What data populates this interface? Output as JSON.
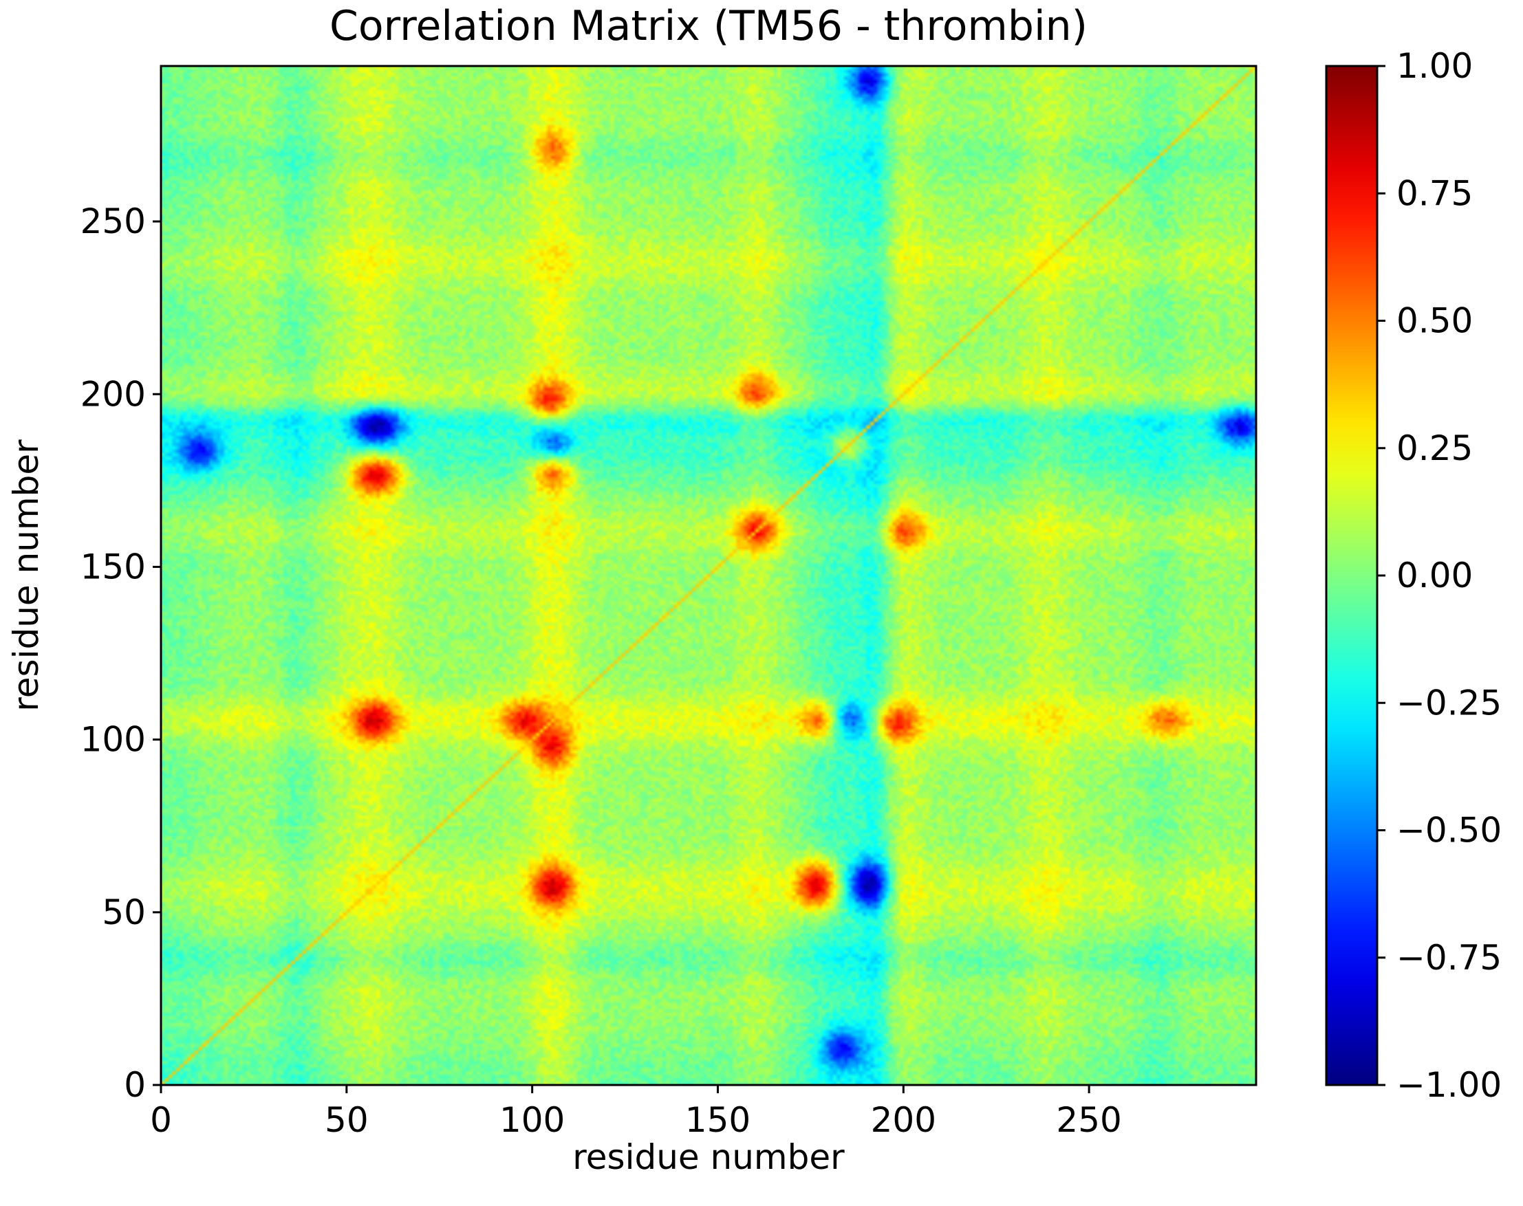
{
  "chart_data": {
    "type": "heatmap",
    "title": "Correlation Matrix (TM56 - thrombin)",
    "xlabel": "residue number",
    "ylabel": "residue number",
    "xlim": [
      0,
      295
    ],
    "ylim": [
      0,
      295
    ],
    "x_ticks": [
      0,
      50,
      100,
      150,
      200,
      250
    ],
    "y_ticks": [
      0,
      50,
      100,
      150,
      200,
      250
    ],
    "colormap": "jet",
    "vmin": -1.0,
    "vmax": 1.0,
    "colorbar_ticks": [
      "1.00",
      "0.75",
      "0.50",
      "0.25",
      "0.00",
      "−0.25",
      "−0.50",
      "−0.75",
      "−1.00"
    ],
    "grid": false,
    "diagonal_value": 1.0,
    "background_value": 0.05,
    "bands": [
      {
        "center": 0,
        "width": 10,
        "strength": -0.18
      },
      {
        "center": 36,
        "width": 4,
        "strength": -0.2
      },
      {
        "center": 56,
        "width": 6,
        "strength": 0.22
      },
      {
        "center": 105,
        "width": 5,
        "strength": 0.3
      },
      {
        "center": 160,
        "width": 4,
        "strength": 0.15
      },
      {
        "center": 183,
        "width": 8,
        "strength": -0.35
      },
      {
        "center": 192,
        "width": 3,
        "strength": -0.3
      },
      {
        "center": 200,
        "width": 4,
        "strength": 0.2
      },
      {
        "center": 238,
        "width": 5,
        "strength": 0.18
      },
      {
        "center": 268,
        "width": 4,
        "strength": -0.15
      }
    ],
    "hotspots": [
      {
        "x": 57,
        "y": 105,
        "value": 0.6
      },
      {
        "x": 105,
        "y": 57,
        "value": 0.6
      },
      {
        "x": 105,
        "y": 97,
        "value": 0.55
      },
      {
        "x": 97,
        "y": 105,
        "value": 0.55
      },
      {
        "x": 105,
        "y": 177,
        "value": 0.55
      },
      {
        "x": 177,
        "y": 105,
        "value": 0.55
      },
      {
        "x": 60,
        "y": 176,
        "value": 0.5
      },
      {
        "x": 176,
        "y": 60,
        "value": 0.5
      },
      {
        "x": 104,
        "y": 197,
        "value": 0.5
      },
      {
        "x": 197,
        "y": 104,
        "value": 0.5
      },
      {
        "x": 160,
        "y": 160,
        "value": 0.6
      },
      {
        "x": 176,
        "y": 55,
        "value": 0.5
      },
      {
        "x": 55,
        "y": 176,
        "value": 0.5
      },
      {
        "x": 270,
        "y": 105,
        "value": 0.45
      },
      {
        "x": 105,
        "y": 270,
        "value": 0.45
      },
      {
        "x": 200,
        "y": 160,
        "value": 0.45
      },
      {
        "x": 160,
        "y": 200,
        "value": 0.45
      },
      {
        "x": 185,
        "y": 185,
        "value": 0.5
      },
      {
        "x": 185,
        "y": 105,
        "value": -0.55
      },
      {
        "x": 105,
        "y": 185,
        "value": -0.55
      },
      {
        "x": 190,
        "y": 55,
        "value": -0.5
      },
      {
        "x": 55,
        "y": 190,
        "value": -0.5
      },
      {
        "x": 10,
        "y": 183,
        "value": -0.5
      },
      {
        "x": 183,
        "y": 10,
        "value": -0.5
      },
      {
        "x": 290,
        "y": 190,
        "value": -0.55
      },
      {
        "x": 190,
        "y": 290,
        "value": -0.55
      },
      {
        "x": 60,
        "y": 190,
        "value": -0.45
      },
      {
        "x": 190,
        "y": 60,
        "value": -0.45
      }
    ]
  }
}
